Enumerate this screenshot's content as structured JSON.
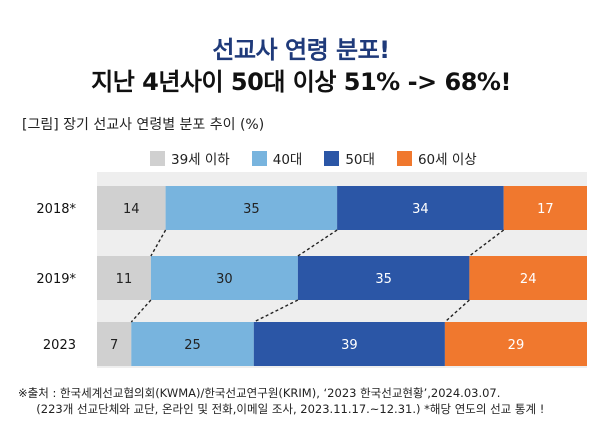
{
  "headline": {
    "line1": "선교사 연령 분포!",
    "line2": "지난 4년사이 50대 이상 51% -> 68%!"
  },
  "subtitle": "[그림] 장기 선교사 연령별 분포 추이 (%)",
  "chart_data": {
    "type": "bar",
    "orientation": "horizontal-stacked-100",
    "categories": [
      "2018*",
      "2019*",
      "2023"
    ],
    "series": [
      {
        "name": "39세 이하",
        "color": "#d0d0d0",
        "values": [
          14,
          11,
          7
        ]
      },
      {
        "name": "40대",
        "color": "#78b4de",
        "values": [
          35,
          30,
          25
        ]
      },
      {
        "name": "50대",
        "color": "#2b56a6",
        "values": [
          34,
          35,
          39
        ]
      },
      {
        "name": "60세 이상",
        "color": "#f0782e",
        "values": [
          17,
          24,
          29
        ]
      }
    ],
    "legend_position": "top",
    "connector_lines": "dashed"
  },
  "footnote": {
    "line1": "※출처 : 한국세계선교협의회(KWMA)/한국선교연구원(KRIM), ‘2023 한국선교현황’,2024.03.07.",
    "line2": "     (223개 선교단체와 교단, 온라인 및 전화,이메일 조사, 2023.11.17.~12.31.) *해당 연도의 선교 통계 !"
  }
}
